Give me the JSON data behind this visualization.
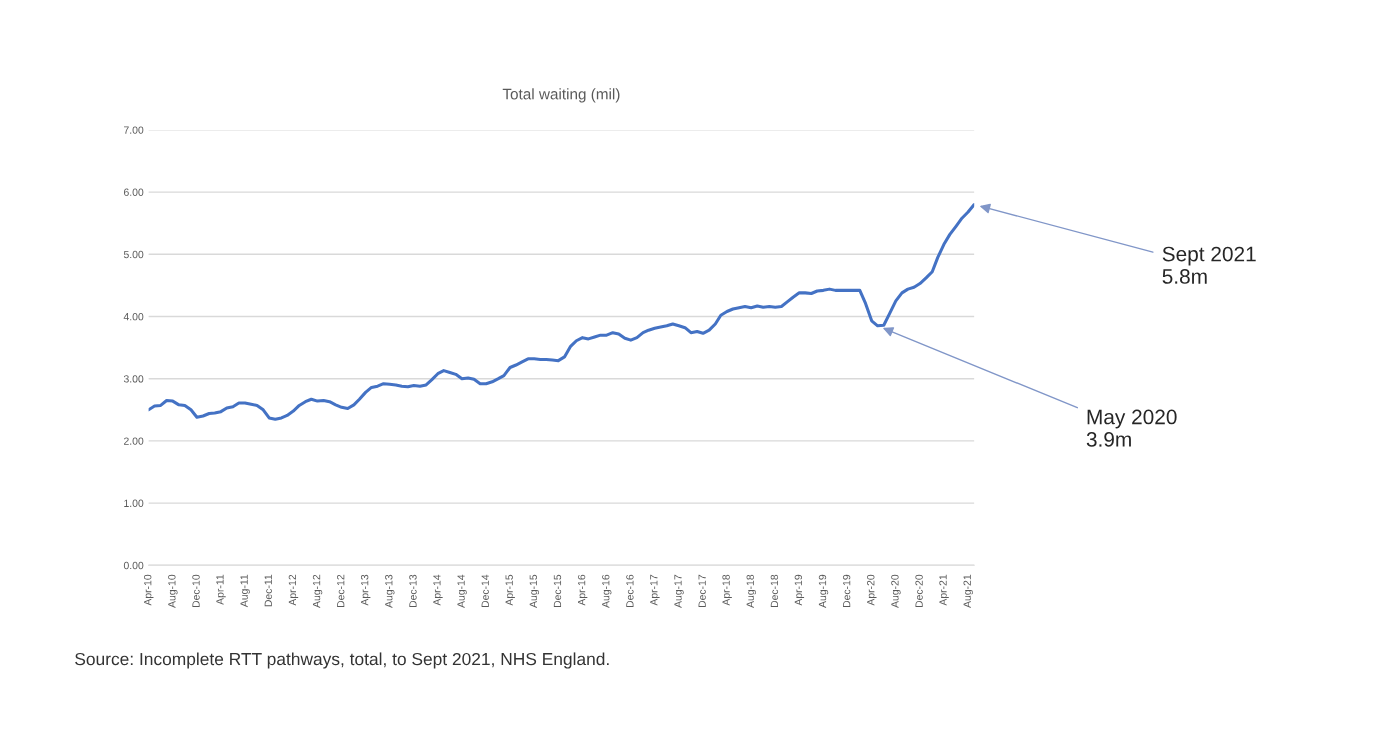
{
  "chart_data": {
    "type": "line",
    "title": "Total waiting (mil)",
    "x": [
      "2010-04",
      "2010-05",
      "2010-06",
      "2010-07",
      "2010-08",
      "2010-09",
      "2010-10",
      "2010-11",
      "2010-12",
      "2011-01",
      "2011-02",
      "2011-03",
      "2011-04",
      "2011-05",
      "2011-06",
      "2011-07",
      "2011-08",
      "2011-09",
      "2011-10",
      "2011-11",
      "2011-12",
      "2012-01",
      "2012-02",
      "2012-03",
      "2012-04",
      "2012-05",
      "2012-06",
      "2012-07",
      "2012-08",
      "2012-09",
      "2012-10",
      "2012-11",
      "2012-12",
      "2013-01",
      "2013-02",
      "2013-03",
      "2013-04",
      "2013-05",
      "2013-06",
      "2013-07",
      "2013-08",
      "2013-09",
      "2013-10",
      "2013-11",
      "2013-12",
      "2014-01",
      "2014-02",
      "2014-03",
      "2014-04",
      "2014-05",
      "2014-06",
      "2014-07",
      "2014-08",
      "2014-09",
      "2014-10",
      "2014-11",
      "2014-12",
      "2015-01",
      "2015-02",
      "2015-03",
      "2015-04",
      "2015-05",
      "2015-06",
      "2015-07",
      "2015-08",
      "2015-09",
      "2015-10",
      "2015-11",
      "2015-12",
      "2016-01",
      "2016-02",
      "2016-03",
      "2016-04",
      "2016-05",
      "2016-06",
      "2016-07",
      "2016-08",
      "2016-09",
      "2016-10",
      "2016-11",
      "2016-12",
      "2017-01",
      "2017-02",
      "2017-03",
      "2017-04",
      "2017-05",
      "2017-06",
      "2017-07",
      "2017-08",
      "2017-09",
      "2017-10",
      "2017-11",
      "2017-12",
      "2018-01",
      "2018-02",
      "2018-03",
      "2018-04",
      "2018-05",
      "2018-06",
      "2018-07",
      "2018-08",
      "2018-09",
      "2018-10",
      "2018-11",
      "2018-12",
      "2019-01",
      "2019-02",
      "2019-03",
      "2019-04",
      "2019-05",
      "2019-06",
      "2019-07",
      "2019-08",
      "2019-09",
      "2019-10",
      "2019-11",
      "2019-12",
      "2020-01",
      "2020-02",
      "2020-03",
      "2020-04",
      "2020-05",
      "2020-06",
      "2020-07",
      "2020-08",
      "2020-09",
      "2020-10",
      "2020-11",
      "2020-12",
      "2021-01",
      "2021-02",
      "2021-03",
      "2021-04",
      "2021-05",
      "2021-06",
      "2021-07",
      "2021-08",
      "2021-09"
    ],
    "series": [
      {
        "color": "#4472c4",
        "values": [
          2.5,
          2.56,
          2.57,
          2.65,
          2.64,
          2.58,
          2.57,
          2.5,
          2.38,
          2.4,
          2.44,
          2.45,
          2.47,
          2.53,
          2.55,
          2.61,
          2.61,
          2.59,
          2.57,
          2.5,
          2.37,
          2.35,
          2.37,
          2.41,
          2.48,
          2.57,
          2.63,
          2.67,
          2.64,
          2.65,
          2.63,
          2.58,
          2.54,
          2.52,
          2.58,
          2.67,
          2.78,
          2.86,
          2.88,
          2.92,
          2.91,
          2.9,
          2.88,
          2.87,
          2.89,
          2.88,
          2.9,
          2.98,
          3.08,
          3.13,
          3.1,
          3.07,
          3.0,
          3.01,
          2.99,
          2.92,
          2.92,
          2.95,
          3.0,
          3.05,
          3.18,
          3.22,
          3.27,
          3.32,
          3.32,
          3.31,
          3.31,
          3.3,
          3.29,
          3.35,
          3.52,
          3.61,
          3.66,
          3.64,
          3.67,
          3.7,
          3.7,
          3.74,
          3.72,
          3.65,
          3.62,
          3.66,
          3.74,
          3.78,
          3.81,
          3.83,
          3.85,
          3.88,
          3.85,
          3.82,
          3.74,
          3.76,
          3.73,
          3.78,
          3.88,
          4.02,
          4.08,
          4.12,
          4.14,
          4.16,
          4.14,
          4.17,
          4.15,
          4.16,
          4.15,
          4.16,
          4.24,
          4.31,
          4.38,
          4.38,
          4.37,
          4.41,
          4.42,
          4.44,
          4.42,
          4.42,
          4.42,
          4.42,
          4.42,
          4.21,
          3.93,
          3.85,
          3.86,
          4.05,
          4.25,
          4.38,
          4.44,
          4.47,
          4.53,
          4.62,
          4.72,
          4.95,
          5.16,
          5.32,
          5.45,
          5.58,
          5.68,
          5.8
        ]
      }
    ],
    "xlim": [
      "2010-04",
      "2021-09"
    ],
    "xticks": [
      {
        "value": "2010-04",
        "label": "Apr-10"
      },
      {
        "value": "2010-08",
        "label": "Aug-10"
      },
      {
        "value": "2010-12",
        "label": "Dec-10"
      },
      {
        "value": "2011-04",
        "label": "Apr-11"
      },
      {
        "value": "2011-08",
        "label": "Aug-11"
      },
      {
        "value": "2011-12",
        "label": "Dec-11"
      },
      {
        "value": "2012-04",
        "label": "Apr-12"
      },
      {
        "value": "2012-08",
        "label": "Aug-12"
      },
      {
        "value": "2012-12",
        "label": "Dec-12"
      },
      {
        "value": "2013-04",
        "label": "Apr-13"
      },
      {
        "value": "2013-08",
        "label": "Aug-13"
      },
      {
        "value": "2013-12",
        "label": "Dec-13"
      },
      {
        "value": "2014-04",
        "label": "Apr-14"
      },
      {
        "value": "2014-08",
        "label": "Aug-14"
      },
      {
        "value": "2014-12",
        "label": "Dec-14"
      },
      {
        "value": "2015-04",
        "label": "Apr-15"
      },
      {
        "value": "2015-08",
        "label": "Aug-15"
      },
      {
        "value": "2015-12",
        "label": "Dec-15"
      },
      {
        "value": "2016-04",
        "label": "Apr-16"
      },
      {
        "value": "2016-08",
        "label": "Aug-16"
      },
      {
        "value": "2016-12",
        "label": "Dec-16"
      },
      {
        "value": "2017-04",
        "label": "Apr-17"
      },
      {
        "value": "2017-08",
        "label": "Aug-17"
      },
      {
        "value": "2017-12",
        "label": "Dec-17"
      },
      {
        "value": "2018-04",
        "label": "Apr-18"
      },
      {
        "value": "2018-08",
        "label": "Aug-18"
      },
      {
        "value": "2018-12",
        "label": "Dec-18"
      },
      {
        "value": "2019-04",
        "label": "Apr-19"
      },
      {
        "value": "2019-08",
        "label": "Aug-19"
      },
      {
        "value": "2019-12",
        "label": "Dec-19"
      },
      {
        "value": "2020-04",
        "label": "Apr-20"
      },
      {
        "value": "2020-08",
        "label": "Aug-20"
      },
      {
        "value": "2020-12",
        "label": "Dec-20"
      },
      {
        "value": "2021-04",
        "label": "Apr-21"
      },
      {
        "value": "2021-08",
        "label": "Aug-21"
      }
    ],
    "ylim": [
      0,
      7
    ],
    "yticks": [
      {
        "value": 0,
        "label": "0.00"
      },
      {
        "value": 1,
        "label": "1.00"
      },
      {
        "value": 2,
        "label": "2.00"
      },
      {
        "value": 3,
        "label": "3.00"
      },
      {
        "value": 4,
        "label": "4.00"
      },
      {
        "value": 5,
        "label": "5.00"
      },
      {
        "value": 6,
        "label": "6.00"
      },
      {
        "value": 7,
        "label": "7.00"
      }
    ],
    "grid": "y",
    "annotations": [
      {
        "text": "Sept 2021\n5.8m",
        "x": "2021-09",
        "y": 5.8
      },
      {
        "text": "May 2020\n3.9m",
        "x": "2020-05",
        "y": 3.85
      },
      "Source: Incomplete RTT pathways, total, to Sept 2021, NHS England."
    ]
  }
}
